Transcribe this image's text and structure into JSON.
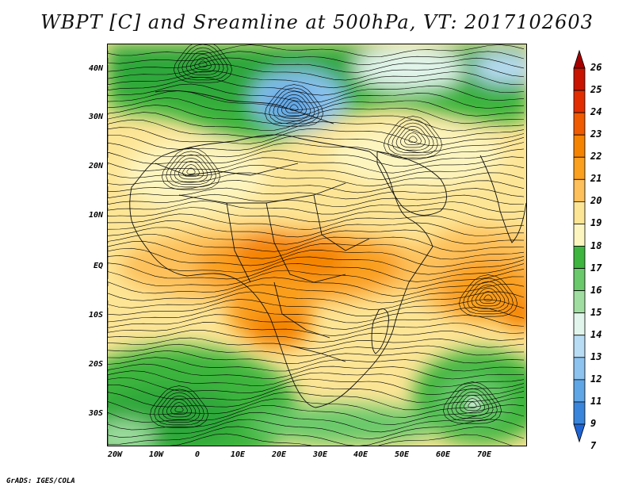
{
  "title": "WBPT [C] and Sreamline at 500hPa, VT: 2017102603",
  "credit": "GrADS: IGES/COLA",
  "lat_labels": [
    "40N",
    "30N",
    "20N",
    "10N",
    "EQ",
    "10S",
    "20S",
    "30S"
  ],
  "lon_labels": [
    "20W",
    "10W",
    "0",
    "10E",
    "20E",
    "30E",
    "40E",
    "50E",
    "60E",
    "70E"
  ],
  "colorbar": {
    "labels": [
      "26",
      "25",
      "24",
      "23",
      "22",
      "21",
      "20",
      "19",
      "18",
      "17",
      "16",
      "15",
      "14",
      "13",
      "12",
      "11",
      "9",
      "7"
    ],
    "colors": [
      "#a50000",
      "#c81400",
      "#e22d00",
      "#f05a00",
      "#f58300",
      "#fa9f1e",
      "#fdc05a",
      "#fde596",
      "#fdf5c0",
      "#3eb53e",
      "#69c96b",
      "#9fdea0",
      "#e2f5ec",
      "#b9dcf5",
      "#8cc3ef",
      "#5fa6e6",
      "#3a85dc",
      "#1f64d4"
    ]
  },
  "map": {
    "lon_range": [
      -22,
      80
    ],
    "lat_range": [
      -36,
      45
    ],
    "variable": "WBPT",
    "units": "C",
    "level": "500hPa",
    "vt": "2017102603"
  }
}
